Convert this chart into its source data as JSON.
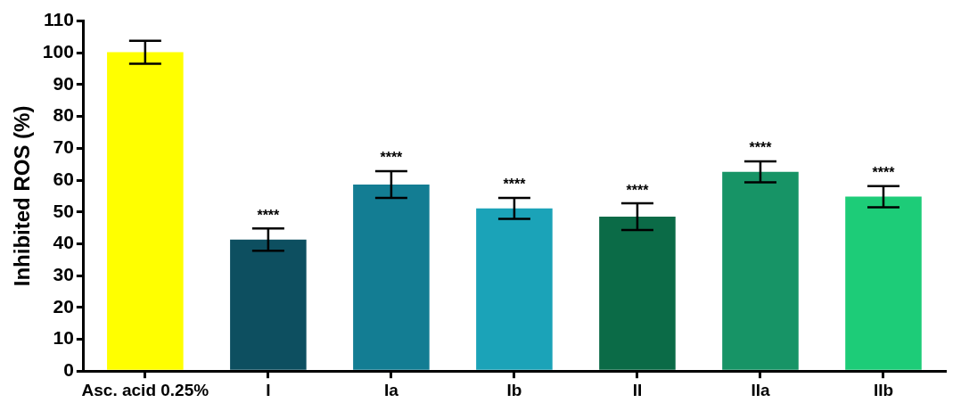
{
  "chart_data": {
    "type": "bar",
    "ylabel": "Inhibited ROS (%)",
    "categories": [
      "Asc. acid 0.25%",
      "I",
      "Ia",
      "Ib",
      "II",
      "IIa",
      "IIb"
    ],
    "values": [
      100.2,
      41.3,
      58.6,
      51.1,
      48.5,
      62.6,
      54.8
    ],
    "colors": [
      "#ffff00",
      "#0d4f60",
      "#137d93",
      "#1ba3b8",
      "#0b6b47",
      "#179466",
      "#1dcc78"
    ],
    "errors": [
      3.6,
      3.5,
      4.2,
      3.3,
      4.2,
      3.3,
      3.3
    ],
    "ylim": [
      0,
      110
    ],
    "yticks": [
      0,
      10,
      20,
      30,
      40,
      50,
      60,
      70,
      80,
      90,
      100,
      110
    ],
    "grid": false,
    "legend": false,
    "annotations": [
      "****",
      "****",
      "****",
      "****",
      "****",
      "****"
    ]
  }
}
